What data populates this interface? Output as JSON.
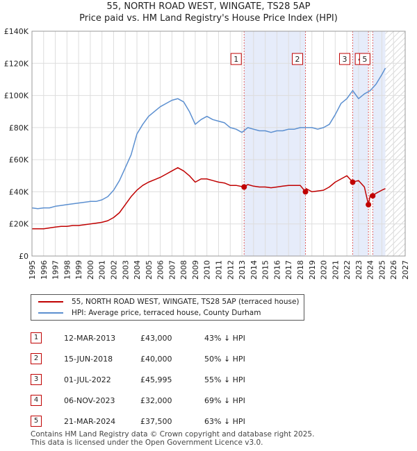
{
  "title_line1": "55, NORTH ROAD WEST, WINGATE, TS28 5AP",
  "title_line2": "Price paid vs. HM Land Registry's House Price Index (HPI)",
  "chart_data": {
    "type": "line",
    "xlim": [
      1995,
      2027
    ],
    "ylim": [
      0,
      140000
    ],
    "x_ticks": [
      1995,
      1996,
      1997,
      1998,
      1999,
      2000,
      2001,
      2002,
      2003,
      2004,
      2005,
      2006,
      2007,
      2008,
      2009,
      2010,
      2011,
      2012,
      2013,
      2014,
      2015,
      2016,
      2017,
      2018,
      2019,
      2020,
      2021,
      2022,
      2023,
      2024,
      2025,
      2026,
      2027
    ],
    "y_ticks": [
      0,
      20000,
      40000,
      60000,
      80000,
      100000,
      120000,
      140000
    ],
    "y_tick_labels": [
      "£0",
      "£20K",
      "£40K",
      "£60K",
      "£80K",
      "£100K",
      "£120K",
      "£140K"
    ],
    "forecast_start": 2025.3,
    "series": [
      {
        "name": "HPI: Average price, terraced house, County Durham",
        "color": "#5b8fd0",
        "x": [
          1995,
          1995.5,
          1996,
          1996.5,
          1997,
          1997.5,
          1998,
          1998.5,
          1999,
          1999.5,
          2000,
          2000.5,
          2001,
          2001.5,
          2002,
          2002.5,
          2003,
          2003.5,
          2004,
          2004.5,
          2005,
          2005.5,
          2006,
          2006.5,
          2007,
          2007.5,
          2008,
          2008.5,
          2009,
          2009.5,
          2010,
          2010.5,
          2011,
          2011.5,
          2012,
          2012.5,
          2013,
          2013.5,
          2014,
          2014.5,
          2015,
          2015.5,
          2016,
          2016.5,
          2017,
          2017.5,
          2018,
          2018.5,
          2019,
          2019.5,
          2020,
          2020.5,
          2021,
          2021.5,
          2022,
          2022.5,
          2023,
          2023.5,
          2024,
          2024.5,
          2025,
          2025.3
        ],
        "values": [
          30000,
          29500,
          30000,
          30000,
          31000,
          31500,
          32000,
          32500,
          33000,
          33500,
          34000,
          34000,
          35000,
          37000,
          41000,
          47000,
          55000,
          63000,
          76000,
          82000,
          87000,
          90000,
          93000,
          95000,
          97000,
          98000,
          96000,
          90000,
          82000,
          85000,
          87000,
          85000,
          84000,
          83000,
          80000,
          79000,
          77000,
          80000,
          79000,
          78000,
          78000,
          77000,
          78000,
          78000,
          79000,
          79000,
          80000,
          80000,
          80000,
          79000,
          80000,
          82000,
          88000,
          95000,
          98000,
          103000,
          98000,
          101000,
          103000,
          107000,
          113000,
          117000
        ]
      },
      {
        "name": "55, NORTH ROAD WEST, WINGATE, TS28 5AP (terraced house)",
        "color": "#c00000",
        "x": [
          1995,
          1995.5,
          1996,
          1996.5,
          1997,
          1997.5,
          1998,
          1998.5,
          1999,
          1999.5,
          2000,
          2000.5,
          2001,
          2001.5,
          2002,
          2002.5,
          2003,
          2003.5,
          2004,
          2004.5,
          2005,
          2005.5,
          2006,
          2006.5,
          2007,
          2007.5,
          2008,
          2008.5,
          2009,
          2009.5,
          2010,
          2010.5,
          2011,
          2011.5,
          2012,
          2012.5,
          2013.19,
          2013.5,
          2014,
          2014.5,
          2015,
          2015.5,
          2016,
          2016.5,
          2017,
          2017.5,
          2018,
          2018.45,
          2018.5,
          2019,
          2019.5,
          2020,
          2020.5,
          2021,
          2021.5,
          2022,
          2022.5,
          2023,
          2023.5,
          2023.85,
          2024,
          2024.22,
          2024.5,
          2025,
          2025.3
        ],
        "values": [
          17000,
          17000,
          17000,
          17500,
          18000,
          18500,
          18500,
          19000,
          19000,
          19500,
          20000,
          20500,
          21000,
          22000,
          24000,
          27000,
          32000,
          37000,
          41000,
          44000,
          46000,
          47500,
          49000,
          51000,
          53000,
          55000,
          53000,
          50000,
          46000,
          48000,
          48000,
          47000,
          46000,
          45500,
          44000,
          44000,
          43000,
          44500,
          43500,
          43000,
          43000,
          42500,
          43000,
          43500,
          44000,
          44000,
          44000,
          40000,
          42000,
          40000,
          40500,
          41000,
          43000,
          46000,
          48000,
          50000,
          46000,
          47000,
          43000,
          32000,
          38000,
          37500,
          39000,
          41000,
          42000
        ]
      }
    ],
    "sales": [
      {
        "label": "1",
        "date": "12-MAR-2013",
        "x": 2013.19,
        "price": 43000,
        "price_text": "£43,000",
        "hpi": "43% ↓ HPI"
      },
      {
        "label": "2",
        "date": "15-JUN-2018",
        "x": 2018.45,
        "price": 40000,
        "price_text": "£40,000",
        "hpi": "50% ↓ HPI"
      },
      {
        "label": "3",
        "date": "01-JUL-2022",
        "x": 2022.5,
        "price": 45995,
        "price_text": "£45,995",
        "hpi": "55% ↓ HPI"
      },
      {
        "label": "4",
        "date": "06-NOV-2023",
        "x": 2023.85,
        "price": 32000,
        "price_text": "£32,000",
        "hpi": "69% ↓ HPI"
      },
      {
        "label": "5",
        "date": "21-MAR-2024",
        "x": 2024.22,
        "price": 37500,
        "price_text": "£37,500",
        "hpi": "63% ↓ HPI"
      }
    ],
    "shaded_ranges": [
      [
        2013.19,
        2018.45
      ],
      [
        2022.5,
        2023.85
      ],
      [
        2024.22,
        2025.3
      ]
    ],
    "colors": {
      "shade": "#e6ecfa",
      "grid": "#dddddd",
      "marker_box": "#c00000"
    }
  },
  "legend": {
    "property": "55, NORTH ROAD WEST, WINGATE, TS28 5AP (terraced house)",
    "hpi": "HPI: Average price, terraced house, County Durham"
  },
  "footer": {
    "line1": "Contains HM Land Registry data © Crown copyright and database right 2025.",
    "line2": "This data is licensed under the Open Government Licence v3.0."
  }
}
